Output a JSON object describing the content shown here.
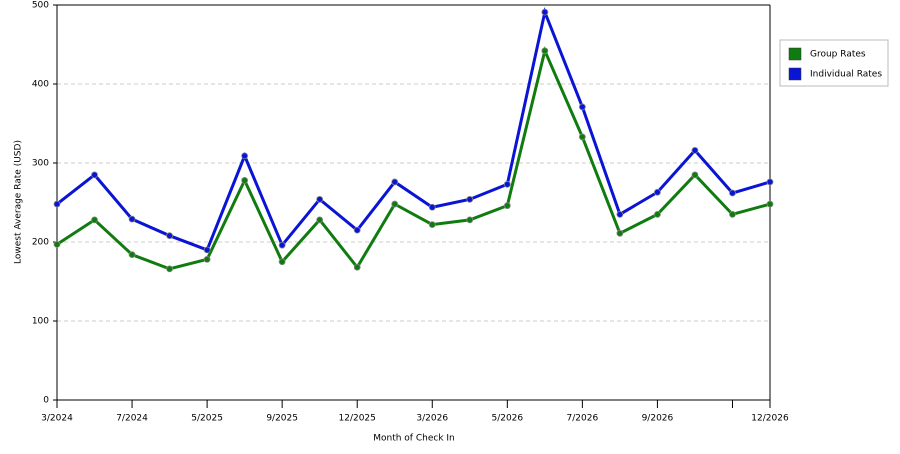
{
  "chart_data": {
    "type": "line",
    "x_label": "Month of Check In",
    "y_label": "Lowest Average Rate (USD)",
    "categories": [
      "3/2024",
      null,
      "7/2024",
      null,
      "5/2025",
      null,
      "9/2025",
      null,
      "12/2025",
      null,
      "3/2026",
      null,
      "5/2026",
      null,
      "7/2026",
      null,
      "9/2026",
      null,
      null,
      "12/2026"
    ],
    "series": [
      {
        "name": "Group Rates",
        "color": "#107c10",
        "values": [
          197,
          228,
          184,
          166,
          178,
          278,
          175,
          228,
          168,
          248,
          222,
          228,
          246,
          442,
          333,
          211,
          235,
          285,
          235,
          248
        ]
      },
      {
        "name": "Individual Rates",
        "color": "#0a14d4",
        "values": [
          248,
          285,
          229,
          208,
          190,
          309,
          196,
          254,
          215,
          276,
          244,
          254,
          273,
          491,
          371,
          235,
          263,
          316,
          262,
          276
        ]
      }
    ],
    "ylim": [
      0,
      500
    ],
    "yticks": [
      0,
      100,
      200,
      300,
      400,
      500
    ],
    "grid": true,
    "legend": "right"
  }
}
